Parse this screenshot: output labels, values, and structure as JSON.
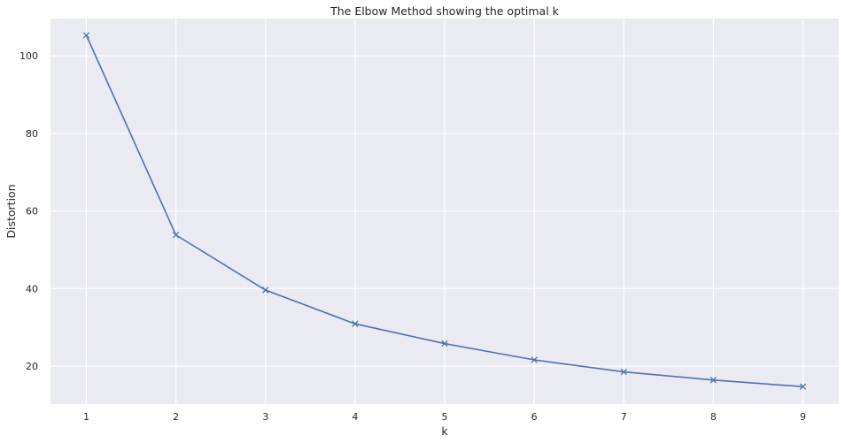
{
  "chart_data": {
    "type": "line",
    "title": "The Elbow Method showing the optimal k",
    "xlabel": "k",
    "ylabel": "Distortion",
    "x": [
      1,
      2,
      3,
      4,
      5,
      6,
      7,
      8,
      9
    ],
    "series": [
      {
        "values": [
          105.3,
          53.8,
          39.6,
          30.9,
          25.8,
          21.6,
          18.5,
          16.4,
          14.7
        ],
        "color": "#4c72b0",
        "marker": "x"
      }
    ],
    "xticks": [
      1,
      2,
      3,
      4,
      5,
      6,
      7,
      8,
      9
    ],
    "yticks": [
      20,
      40,
      60,
      80,
      100
    ],
    "xlim": [
      0.6,
      9.4
    ],
    "ylim": [
      10.2,
      109.6
    ],
    "grid": true,
    "background": "#eaeaf2",
    "grid_color": "#ffffff"
  }
}
